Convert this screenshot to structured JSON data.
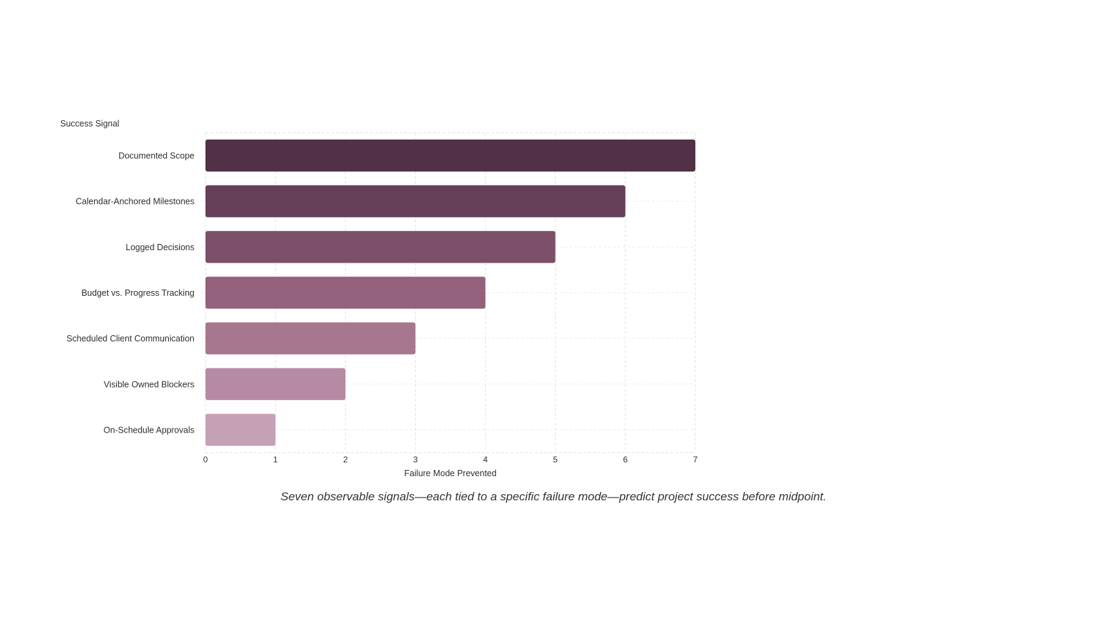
{
  "chart_data": {
    "type": "bar",
    "orientation": "horizontal",
    "categories": [
      "Documented Scope",
      "Calendar-Anchored Milestones",
      "Logged Decisions",
      "Budget vs. Progress Tracking",
      "Scheduled Client Communication",
      "Visible Owned Blockers",
      "On-Schedule Approvals"
    ],
    "values": [
      7,
      6,
      5,
      4,
      3,
      2,
      1
    ],
    "colors": [
      "#523046",
      "#663f59",
      "#7d506a",
      "#94607c",
      "#a7768f",
      "#b68aa2",
      "#c5a1b6"
    ],
    "xlabel": "Failure Mode Prevented",
    "ylabel": "Success Signal",
    "xlim": [
      0,
      7
    ],
    "xticks": [
      "0",
      "1",
      "2",
      "3",
      "4",
      "5",
      "6",
      "7"
    ],
    "grid": true,
    "caption": "Seven observable signals—each tied to a specific failure mode—predict project success before midpoint."
  }
}
